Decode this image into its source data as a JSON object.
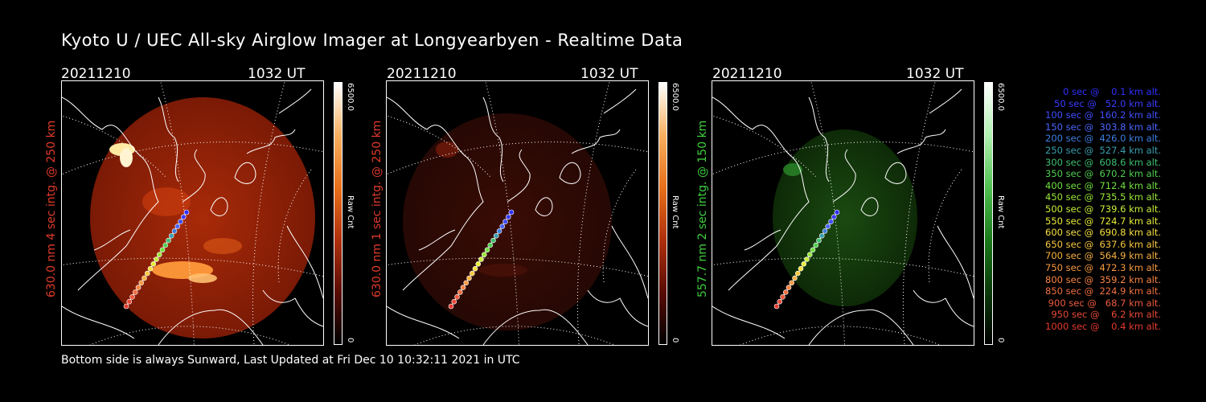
{
  "title": "Kyoto U / UEC All-sky Airglow Imager at Longyearbyen - Realtime Data",
  "panels": [
    {
      "date": "20211210",
      "time": "1032 UT",
      "label": "630.0 nm 4 sec intg. @ 250 km",
      "label_color": "#e03a2a",
      "cbar_max": "6500.0",
      "cbar_unit": "Raw Cnt",
      "cbar_min": "0",
      "hue": "red",
      "brightness": "high"
    },
    {
      "date": "20211210",
      "time": "1032 UT",
      "label": "630.0 nm 1 sec intg. @ 250 km",
      "label_color": "#e03a2a",
      "cbar_max": "6500.0",
      "cbar_unit": "Raw Cnt",
      "cbar_min": "0",
      "hue": "red",
      "brightness": "low"
    },
    {
      "date": "20211210",
      "time": "1032 UT",
      "label": "557.7 nm 2 sec intg. @ 150 km",
      "label_color": "#3fcf3f",
      "cbar_max": "6500.0",
      "cbar_unit": "Raw Cnt",
      "cbar_min": "0",
      "hue": "green",
      "brightness": "low"
    }
  ],
  "footer": "Bottom side is always Sunward, Last Updated at Fri Dec 10 10:32:11 2021 in UTC",
  "legend": [
    {
      "text": "   0 sec @    0.1 km alt.",
      "color": "#3030ff"
    },
    {
      "text": "  50 sec @   52.0 km alt.",
      "color": "#3a3aff"
    },
    {
      "text": " 100 sec @  160.2 km alt.",
      "color": "#3f4fff"
    },
    {
      "text": " 150 sec @  303.8 km alt.",
      "color": "#4a66ff"
    },
    {
      "text": " 200 sec @  426.0 km alt.",
      "color": "#3d7fe0"
    },
    {
      "text": " 250 sec @  527.4 km alt.",
      "color": "#3a9fb0"
    },
    {
      "text": " 300 sec @  608.6 km alt.",
      "color": "#3fbf70"
    },
    {
      "text": " 350 sec @  670.2 km alt.",
      "color": "#4fd050"
    },
    {
      "text": " 400 sec @  712.4 km alt.",
      "color": "#70e040"
    },
    {
      "text": " 450 sec @  735.5 km alt.",
      "color": "#9ae83a"
    },
    {
      "text": " 500 sec @  739.6 km alt.",
      "color": "#c8ee3a"
    },
    {
      "text": " 550 sec @  724.7 km alt.",
      "color": "#e8ee3a"
    },
    {
      "text": " 600 sec @  690.8 km alt.",
      "color": "#f6e040"
    },
    {
      "text": " 650 sec @  637.6 km alt.",
      "color": "#f8c840"
    },
    {
      "text": " 700 sec @  564.9 km alt.",
      "color": "#f8b040"
    },
    {
      "text": " 750 sec @  472.3 km alt.",
      "color": "#f89a40"
    },
    {
      "text": " 800 sec @  359.2 km alt.",
      "color": "#f88440"
    },
    {
      "text": " 850 sec @  224.9 km alt.",
      "color": "#f07040"
    },
    {
      "text": " 900 sec @   68.7 km alt.",
      "color": "#ee5a3a"
    },
    {
      "text": " 950 sec @    6.2 km alt.",
      "color": "#ea4a36"
    },
    {
      "text": "1000 sec @    0.4 km alt.",
      "color": "#e63a30"
    }
  ]
}
